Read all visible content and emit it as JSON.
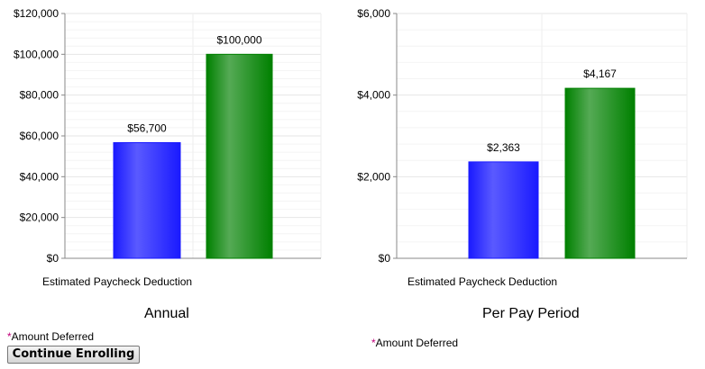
{
  "chart_data": [
    {
      "type": "bar",
      "title": "Annual",
      "xlabel": "Estimated Paycheck Deduction",
      "ylim": [
        0,
        120000
      ],
      "ticks": [
        "$0",
        "$20,000",
        "$40,000",
        "$60,000",
        "$80,000",
        "$100,000",
        "$120,000"
      ],
      "tick_values": [
        0,
        20000,
        40000,
        60000,
        80000,
        100000,
        120000
      ],
      "values": [
        56700,
        100000
      ],
      "data_labels": [
        "$56,700",
        "$100,000"
      ],
      "colors": [
        "#1a1aff",
        "#008000"
      ],
      "footnote": "Amount Deferred"
    },
    {
      "type": "bar",
      "title": "Per Pay Period",
      "xlabel": "Estimated Paycheck Deduction",
      "ylim": [
        0,
        6000
      ],
      "ticks": [
        "$0",
        "$2,000",
        "$4,000",
        "$6,000"
      ],
      "tick_values": [
        0,
        2000,
        4000,
        6000
      ],
      "values": [
        2363,
        4167
      ],
      "data_labels": [
        "$2,363",
        "$4,167"
      ],
      "colors": [
        "#1a1aff",
        "#008000"
      ],
      "footnote": "Amount Deferred"
    }
  ],
  "asterisk": "*",
  "button": {
    "label": "Continue Enrolling"
  }
}
